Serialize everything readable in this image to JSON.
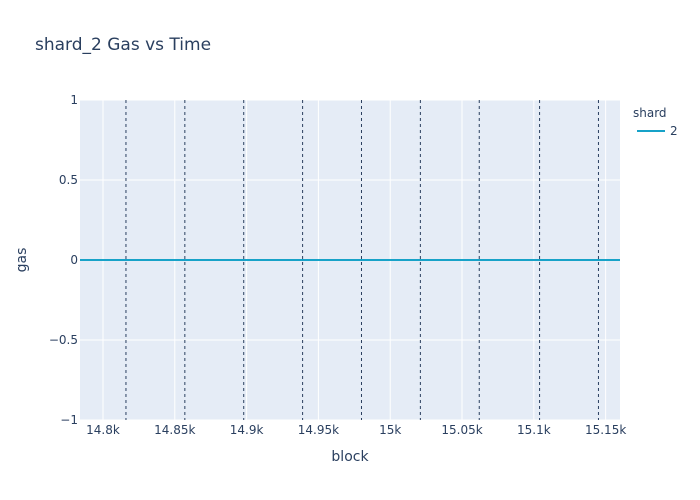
{
  "chart_data": {
    "type": "line",
    "title": "shard_2 Gas vs Time",
    "xlabel": "block",
    "ylabel": "gas",
    "xlim": [
      14784,
      15160
    ],
    "ylim": [
      -1,
      1
    ],
    "x_ticks": [
      14800,
      14850,
      14900,
      14950,
      15000,
      15050,
      15100,
      15150
    ],
    "x_tick_labels": [
      "14.8k",
      "14.85k",
      "14.9k",
      "14.95k",
      "15k",
      "15.05k",
      "15.1k",
      "15.15k"
    ],
    "y_ticks": [
      -1,
      -0.5,
      0,
      0.5,
      1
    ],
    "y_tick_labels": [
      "−1",
      "−0.5",
      "0",
      "0.5",
      "1"
    ],
    "legend_title": "shard",
    "legend_position": "top-right",
    "grid": true,
    "series": [
      {
        "name": "2",
        "color": "#17a2c8",
        "x": [
          14784,
          15160
        ],
        "y": [
          0,
          0
        ]
      }
    ],
    "vlines": [
      14816,
      14857,
      14898,
      14939,
      14980,
      15021,
      15062,
      15104,
      15145
    ],
    "vline_color": "#2a3f5f",
    "plot_bg": "#e5ecf6"
  }
}
